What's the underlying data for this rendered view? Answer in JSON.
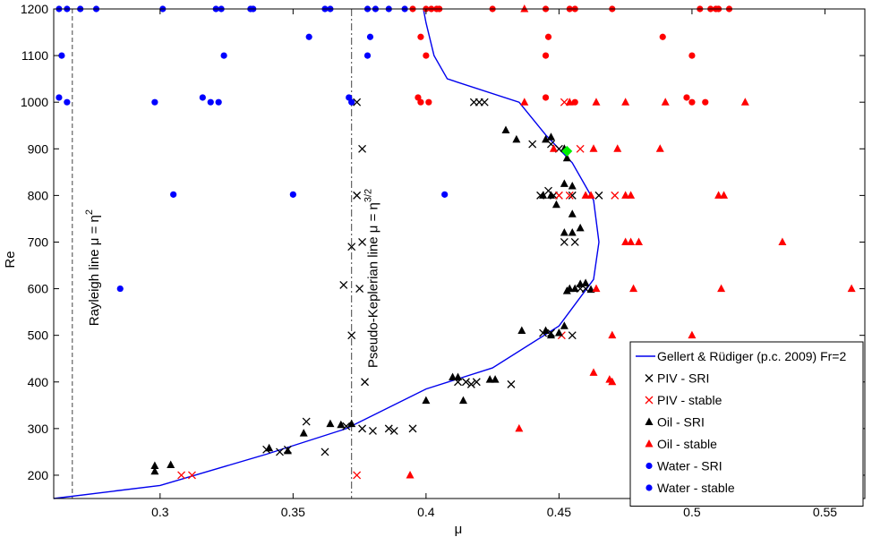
{
  "chart_data": {
    "type": "scatter",
    "xlabel": "μ",
    "ylabel": "Re",
    "xlim": [
      0.26,
      0.565
    ],
    "ylim": [
      150,
      1200
    ],
    "xticks": [
      0.3,
      0.35,
      0.4,
      0.45,
      0.5,
      0.55
    ],
    "xtick_labels": [
      "0.3",
      "0.35",
      "0.4",
      "0.45",
      "0.5",
      "0.55"
    ],
    "yticks": [
      200,
      300,
      400,
      500,
      600,
      700,
      800,
      900,
      1000,
      1100,
      1200
    ],
    "ytick_labels": [
      "200",
      "300",
      "400",
      "500",
      "600",
      "700",
      "800",
      "900",
      "1000",
      "1100",
      "1200"
    ],
    "colors": {
      "blue": "#0000ff",
      "red": "#ff0000",
      "black": "#000000",
      "green": "#00ee00",
      "line": "#0000ee"
    },
    "reference_lines": [
      {
        "name": "rayleigh",
        "x": 0.267,
        "text": "Rayleigh line μ = η",
        "sup": "2"
      },
      {
        "name": "pseudo-keplerian",
        "x": 0.372,
        "text": "Pseudo-Keplerian line μ = η",
        "sup": "3/2"
      }
    ],
    "series": [
      {
        "name": "Gellert & Rüdiger (p.c. 2009) Fr=2",
        "kind": "line",
        "color": "#0000ee",
        "points": [
          [
            0.26,
            150
          ],
          [
            0.3,
            178
          ],
          [
            0.34,
            245
          ],
          [
            0.37,
            300
          ],
          [
            0.4,
            385
          ],
          [
            0.425,
            430
          ],
          [
            0.45,
            520
          ],
          [
            0.463,
            620
          ],
          [
            0.465,
            700
          ],
          [
            0.463,
            790
          ],
          [
            0.455,
            870
          ],
          [
            0.445,
            930
          ],
          [
            0.435,
            1000
          ],
          [
            0.408,
            1050
          ],
          [
            0.403,
            1100
          ],
          [
            0.4,
            1170
          ],
          [
            0.399,
            1200
          ]
        ]
      },
      {
        "name": "PIV - SRI",
        "kind": "cross",
        "color": "#000000",
        "points": [
          [
            0.374,
            1000
          ],
          [
            0.376,
            900
          ],
          [
            0.374,
            800
          ],
          [
            0.372,
            690
          ],
          [
            0.376,
            700
          ],
          [
            0.369,
            608
          ],
          [
            0.375,
            600
          ],
          [
            0.372,
            500
          ],
          [
            0.377,
            400
          ],
          [
            0.355,
            315
          ],
          [
            0.362,
            250
          ],
          [
            0.376,
            300
          ],
          [
            0.38,
            295
          ],
          [
            0.386,
            300
          ],
          [
            0.388,
            295
          ],
          [
            0.395,
            300
          ],
          [
            0.37,
            305
          ],
          [
            0.345,
            250
          ],
          [
            0.348,
            255
          ],
          [
            0.34,
            255
          ],
          [
            0.419,
            400
          ],
          [
            0.417,
            395
          ],
          [
            0.42,
            1000
          ],
          [
            0.422,
            1000
          ],
          [
            0.418,
            1000
          ],
          [
            0.44,
            910
          ],
          [
            0.447,
            910
          ],
          [
            0.45,
            900
          ],
          [
            0.443,
            800
          ],
          [
            0.448,
            800
          ],
          [
            0.455,
            800
          ],
          [
            0.465,
            800
          ],
          [
            0.46,
            600
          ],
          [
            0.458,
            600
          ],
          [
            0.455,
            500
          ],
          [
            0.452,
            700
          ],
          [
            0.456,
            700
          ],
          [
            0.444,
            505
          ],
          [
            0.447,
            505
          ],
          [
            0.412,
            400
          ],
          [
            0.432,
            395
          ],
          [
            0.415,
            400
          ],
          [
            0.446,
            810
          ]
        ]
      },
      {
        "name": "PIV - stable",
        "kind": "cross",
        "color": "#ff0000",
        "points": [
          [
            0.374,
            200
          ],
          [
            0.308,
            200
          ],
          [
            0.312,
            200
          ],
          [
            0.452,
            1000
          ],
          [
            0.458,
            900
          ],
          [
            0.45,
            800
          ],
          [
            0.471,
            800
          ],
          [
            0.451,
            500
          ],
          [
            0.454,
            800
          ]
        ]
      },
      {
        "name": "Oil - SRI",
        "kind": "triangle",
        "color": "#000000",
        "points": [
          [
            0.298,
            220
          ],
          [
            0.298,
            208
          ],
          [
            0.304,
            222
          ],
          [
            0.341,
            258
          ],
          [
            0.348,
            252
          ],
          [
            0.364,
            310
          ],
          [
            0.368,
            308
          ],
          [
            0.372,
            310
          ],
          [
            0.354,
            290
          ],
          [
            0.4,
            360
          ],
          [
            0.41,
            410
          ],
          [
            0.412,
            410
          ],
          [
            0.414,
            360
          ],
          [
            0.424,
            405
          ],
          [
            0.426,
            405
          ],
          [
            0.436,
            510
          ],
          [
            0.445,
            510
          ],
          [
            0.447,
            500
          ],
          [
            0.45,
            505
          ],
          [
            0.452,
            520
          ],
          [
            0.43,
            940
          ],
          [
            0.434,
            920
          ],
          [
            0.445,
            920
          ],
          [
            0.447,
            925
          ],
          [
            0.452,
            900
          ],
          [
            0.453,
            880
          ],
          [
            0.452,
            825
          ],
          [
            0.455,
            820
          ],
          [
            0.444,
            800
          ],
          [
            0.447,
            800
          ],
          [
            0.449,
            780
          ],
          [
            0.455,
            760
          ],
          [
            0.452,
            720
          ],
          [
            0.455,
            720
          ],
          [
            0.458,
            730
          ],
          [
            0.454,
            600
          ],
          [
            0.456,
            600
          ],
          [
            0.458,
            610
          ],
          [
            0.46,
            612
          ],
          [
            0.462,
            598
          ],
          [
            0.453,
            595
          ]
        ]
      },
      {
        "name": "Oil - stable",
        "kind": "triangle",
        "color": "#ff0000",
        "points": [
          [
            0.437,
            1000
          ],
          [
            0.454,
            1000
          ],
          [
            0.464,
            1000
          ],
          [
            0.475,
            1000
          ],
          [
            0.49,
            1000
          ],
          [
            0.52,
            1000
          ],
          [
            0.448,
            900
          ],
          [
            0.463,
            900
          ],
          [
            0.472,
            900
          ],
          [
            0.488,
            900
          ],
          [
            0.46,
            800
          ],
          [
            0.462,
            800
          ],
          [
            0.475,
            800
          ],
          [
            0.477,
            800
          ],
          [
            0.51,
            800
          ],
          [
            0.512,
            800
          ],
          [
            0.475,
            700
          ],
          [
            0.477,
            700
          ],
          [
            0.48,
            700
          ],
          [
            0.534,
            700
          ],
          [
            0.464,
            600
          ],
          [
            0.478,
            600
          ],
          [
            0.511,
            600
          ],
          [
            0.56,
            600
          ],
          [
            0.47,
            500
          ],
          [
            0.5,
            500
          ],
          [
            0.463,
            420
          ],
          [
            0.469,
            405
          ],
          [
            0.47,
            400
          ],
          [
            0.435,
            300
          ],
          [
            0.394,
            200
          ],
          [
            0.437,
            1200
          ]
        ]
      },
      {
        "name": "Oil - stable (highlight)",
        "kind": "diamond",
        "color": "#00ee00",
        "legend": false,
        "points": [
          [
            0.453,
            895
          ]
        ]
      },
      {
        "name": "Water - SRI",
        "kind": "dot",
        "color": "#0000ff",
        "points": [
          [
            0.262,
            1200
          ],
          [
            0.265,
            1200
          ],
          [
            0.27,
            1200
          ],
          [
            0.276,
            1200
          ],
          [
            0.301,
            1200
          ],
          [
            0.321,
            1200
          ],
          [
            0.323,
            1200
          ],
          [
            0.334,
            1200
          ],
          [
            0.335,
            1200
          ],
          [
            0.362,
            1200
          ],
          [
            0.364,
            1200
          ],
          [
            0.378,
            1200
          ],
          [
            0.381,
            1200
          ],
          [
            0.386,
            1200
          ],
          [
            0.392,
            1200
          ],
          [
            0.263,
            1100
          ],
          [
            0.324,
            1100
          ],
          [
            0.356,
            1140
          ],
          [
            0.379,
            1140
          ],
          [
            0.378,
            1100
          ],
          [
            0.262,
            1010
          ],
          [
            0.265,
            1000
          ],
          [
            0.298,
            1000
          ],
          [
            0.316,
            1010
          ],
          [
            0.319,
            1000
          ],
          [
            0.322,
            1000
          ],
          [
            0.371,
            1010
          ],
          [
            0.372,
            1000
          ],
          [
            0.305,
            802
          ],
          [
            0.35,
            802
          ],
          [
            0.407,
            802
          ],
          [
            0.285,
            600
          ]
        ]
      },
      {
        "name": "Water - stable",
        "kind": "dot",
        "color": "#ff0000",
        "legend_color": "#0000ff",
        "points": [
          [
            0.395,
            1200
          ],
          [
            0.4,
            1200
          ],
          [
            0.402,
            1200
          ],
          [
            0.404,
            1200
          ],
          [
            0.405,
            1200
          ],
          [
            0.425,
            1200
          ],
          [
            0.445,
            1200
          ],
          [
            0.454,
            1200
          ],
          [
            0.456,
            1200
          ],
          [
            0.47,
            1200
          ],
          [
            0.503,
            1200
          ],
          [
            0.507,
            1200
          ],
          [
            0.509,
            1200
          ],
          [
            0.51,
            1200
          ],
          [
            0.514,
            1200
          ],
          [
            0.398,
            1140
          ],
          [
            0.446,
            1140
          ],
          [
            0.489,
            1140
          ],
          [
            0.4,
            1100
          ],
          [
            0.445,
            1100
          ],
          [
            0.5,
            1100
          ],
          [
            0.397,
            1010
          ],
          [
            0.398,
            1000
          ],
          [
            0.401,
            1000
          ],
          [
            0.445,
            1010
          ],
          [
            0.456,
            1000
          ],
          [
            0.498,
            1010
          ],
          [
            0.5,
            1000
          ],
          [
            0.505,
            1000
          ]
        ]
      }
    ]
  }
}
